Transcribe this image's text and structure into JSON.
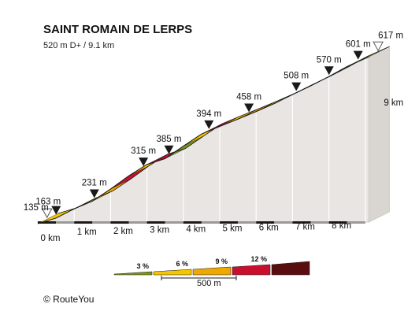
{
  "title": "SAINT ROMAIN DE LERPS",
  "subtitle": "520 m D+ / 9.1 km",
  "copyright": "©  RouteYou",
  "chart_data": {
    "type": "area",
    "x_unit": "km",
    "y_unit": "m",
    "points": [
      {
        "km": 0.0,
        "ele": 135
      },
      {
        "km": 0.5,
        "ele": 151
      },
      {
        "km": 1.0,
        "ele": 178
      },
      {
        "km": 1.5,
        "ele": 200
      },
      {
        "km": 2.0,
        "ele": 235
      },
      {
        "km": 2.5,
        "ele": 273
      },
      {
        "km": 3.0,
        "ele": 306
      },
      {
        "km": 3.5,
        "ele": 323
      },
      {
        "km": 4.0,
        "ele": 359
      },
      {
        "km": 4.5,
        "ele": 394
      },
      {
        "km": 5.0,
        "ele": 416
      },
      {
        "km": 5.5,
        "ele": 437
      },
      {
        "km": 6.0,
        "ele": 459
      },
      {
        "km": 6.5,
        "ele": 482
      },
      {
        "km": 7.0,
        "ele": 508
      },
      {
        "km": 7.5,
        "ele": 533
      },
      {
        "km": 8.0,
        "ele": 560
      },
      {
        "km": 8.5,
        "ele": 589
      },
      {
        "km": 9.1,
        "ele": 617
      }
    ],
    "segment_colors": [
      "#f5c600",
      "#5a0d0f",
      "#7f951b",
      "#eea800",
      "#c8102e",
      "#f5c600",
      "#c8102e",
      "#7f951b",
      "#f5c600",
      "#c8102e",
      "#f5c600",
      "#eea800",
      "#f5c600",
      "#eea800",
      "#f5c600",
      "#f5c600",
      "#7f951b",
      "#7f951b"
    ],
    "markers": [
      {
        "label": "135 m",
        "km": 0.0,
        "ele": 135,
        "style": "open"
      },
      {
        "label": "163 m",
        "km": 0.25,
        "ele": 163,
        "style": "filled"
      },
      {
        "label": "231 m",
        "km": 1.3,
        "ele": 231,
        "style": "filled"
      },
      {
        "label": "315 m",
        "km": 2.65,
        "ele": 315,
        "style": "filled"
      },
      {
        "label": "385 m",
        "km": 3.35,
        "ele": 385,
        "style": "filled"
      },
      {
        "label": "394 m",
        "km": 4.45,
        "ele": 394,
        "style": "filled"
      },
      {
        "label": "458 m",
        "km": 5.55,
        "ele": 458,
        "style": "filled"
      },
      {
        "label": "508 m",
        "km": 6.85,
        "ele": 508,
        "style": "filled"
      },
      {
        "label": "570 m",
        "km": 7.75,
        "ele": 570,
        "style": "filled"
      },
      {
        "label": "601 m",
        "km": 8.55,
        "ele": 601,
        "style": "filled"
      },
      {
        "label": "617 m",
        "km": 9.1,
        "ele": 617,
        "style": "open"
      }
    ],
    "km_ticks": [
      "0 km",
      "1 km",
      "2 km",
      "3 km",
      "4 km",
      "5 km",
      "6 km",
      "7 km",
      "8 km",
      "9 km"
    ],
    "legend": [
      {
        "label": "3 %",
        "color": "#7f951b"
      },
      {
        "label": "6 %",
        "color": "#f5c600"
      },
      {
        "label": "9 %",
        "color": "#eea800"
      },
      {
        "label": "12 %",
        "color": "#c8102e"
      },
      {
        "label": "",
        "color": "#5a0d0f"
      }
    ],
    "scale_label": "500 m",
    "colors": {
      "face": "#e8e5e2",
      "face_edge": "#cfcac6",
      "divider": "#ffffff",
      "ribbon_edge": "#1a1a1a",
      "tick": "#1a1a1a"
    }
  }
}
